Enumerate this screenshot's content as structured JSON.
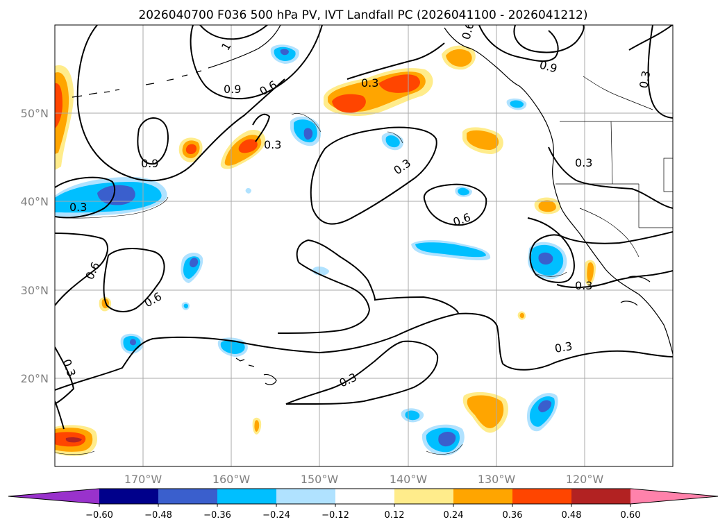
{
  "title": "2026040700 F036 500 hPa PV, IVT Landfall PC (2026041100 - 2026041212)",
  "lat_labels": [
    "50°N",
    "40°N",
    "30°N",
    "20°N"
  ],
  "lon_labels": [
    "170°W",
    "160°W",
    "150°W",
    "140°W",
    "130°W",
    "120°W"
  ],
  "contour_labels": {
    "c1": "1",
    "c2": "0.9",
    "c3": "0.6",
    "c4": "0.3",
    "c5": "0.6",
    "c6": "0.3",
    "c7": "0.9",
    "c8": "0.3",
    "c9": "0.9",
    "c10": "0.3",
    "c11": "0.3",
    "c12": "0.3",
    "c13": "0.6",
    "c14": "0.3",
    "c15": "0.6",
    "c16": "0.6",
    "c17": "0.3",
    "c18": "0.3",
    "c19": "0.3"
  },
  "colorbar": {
    "levels": [
      "−0.60",
      "−0.48",
      "−0.36",
      "−0.24",
      "−0.12",
      "0.12",
      "0.24",
      "0.36",
      "0.48",
      "0.60"
    ],
    "colors": [
      "#9932cc",
      "#00008b",
      "#3a5fcd",
      "#00bfff",
      "#b0e2ff",
      "#ffffff",
      "#ffec8b",
      "#ffa500",
      "#ff4500",
      "#b22222",
      "#ff82ab"
    ]
  }
}
